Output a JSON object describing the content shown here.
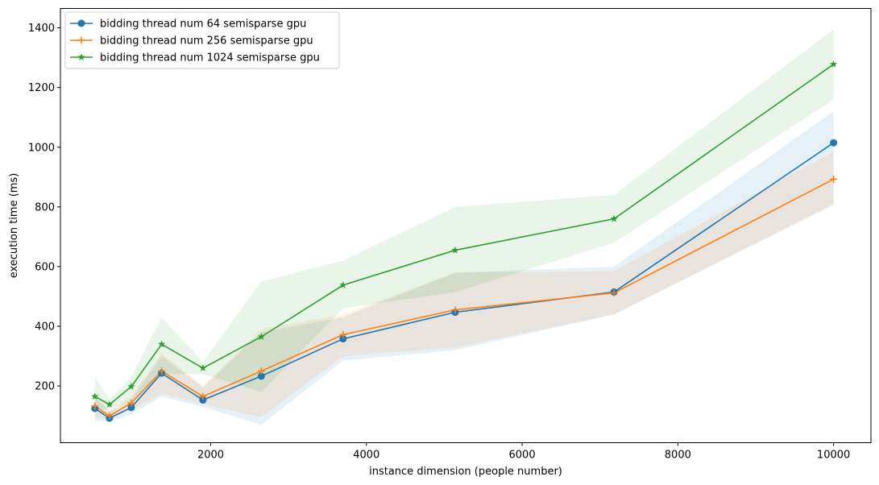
{
  "chart_data": {
    "type": "line",
    "title": "",
    "xlabel": "instance dimension (people number)",
    "ylabel": "execution time (ms)",
    "xlim": [
      70,
      10480
    ],
    "ylim": [
      10,
      1465
    ],
    "xticks": [
      2000,
      4000,
      6000,
      8000,
      10000
    ],
    "yticks": [
      200,
      400,
      600,
      800,
      1000,
      1200,
      1400
    ],
    "grid": false,
    "legend_position": "top-left",
    "x": [
      512,
      700,
      980,
      1370,
      1900,
      2650,
      3700,
      5140,
      7180,
      10000
    ],
    "series": [
      {
        "name": "bidding thread num 64 semisparse gpu",
        "color": "#1f77b4",
        "marker": "circle",
        "values": [
          125,
          92,
          128,
          243,
          153,
          233,
          358,
          447,
          515,
          1015
        ],
        "band_lower": [
          85,
          80,
          105,
          165,
          130,
          70,
          285,
          320,
          440,
          810
        ],
        "band_upper": [
          160,
          115,
          155,
          300,
          195,
          380,
          430,
          580,
          600,
          1120
        ]
      },
      {
        "name": "bidding thread num 256 semisparse gpu",
        "color": "#ff7f0e",
        "marker": "plus",
        "values": [
          132,
          100,
          143,
          250,
          165,
          250,
          372,
          455,
          512,
          893
        ],
        "band_lower": [
          95,
          90,
          120,
          175,
          140,
          95,
          300,
          330,
          440,
          805
        ],
        "band_upper": [
          170,
          120,
          165,
          310,
          200,
          390,
          440,
          580,
          585,
          985
        ]
      },
      {
        "name": "bidding thread num 1024 semisparse gpu",
        "color": "#2ca02c",
        "marker": "star",
        "values": [
          165,
          138,
          198,
          340,
          260,
          365,
          538,
          655,
          760,
          1278
        ],
        "band_lower": [
          120,
          125,
          150,
          240,
          240,
          180,
          460,
          515,
          680,
          1160
        ],
        "band_upper": [
          230,
          155,
          230,
          430,
          280,
          550,
          620,
          800,
          840,
          1395
        ]
      }
    ]
  }
}
